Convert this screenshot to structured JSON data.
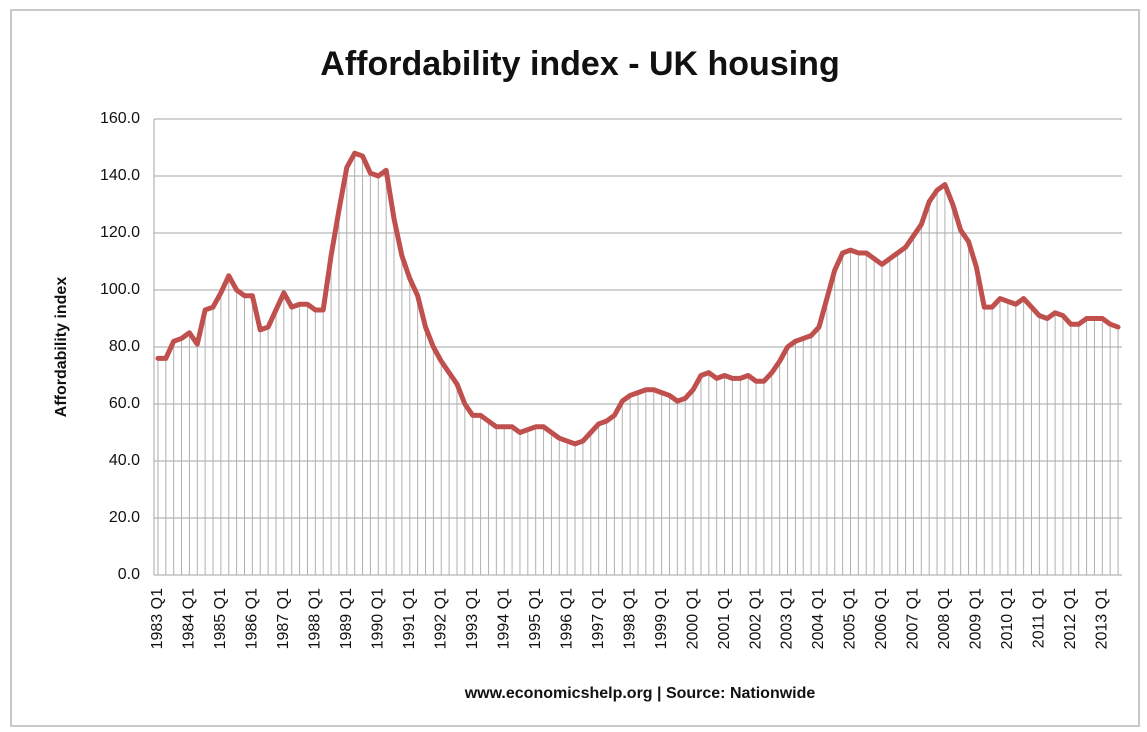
{
  "chart_data": {
    "type": "line",
    "title": "Affordability index - UK housing",
    "y_label": "Affordability index",
    "x_label": "www.economicshelp.org | Source: Nationwide",
    "color": "#c0504d",
    "grid": true,
    "drop_lines": true,
    "ylim": [
      0,
      160
    ],
    "yticks": [
      {
        "value": 0,
        "label": "0.0"
      },
      {
        "value": 20,
        "label": "20.0"
      },
      {
        "value": 40,
        "label": "40.0"
      },
      {
        "value": 60,
        "label": "60.0"
      },
      {
        "value": 80,
        "label": "80.0"
      },
      {
        "value": 100,
        "label": "100.0"
      },
      {
        "value": 120,
        "label": "120.0"
      },
      {
        "value": 140,
        "label": "140.0"
      },
      {
        "value": 160,
        "label": "160.0"
      }
    ],
    "categories": [
      "1983 Q1",
      null,
      null,
      null,
      "1984 Q1",
      null,
      null,
      null,
      "1985 Q1",
      null,
      null,
      null,
      "1986 Q1",
      null,
      null,
      null,
      "1987 Q1",
      null,
      null,
      null,
      "1988 Q1",
      null,
      null,
      null,
      "1989 Q1",
      null,
      null,
      null,
      "1990 Q1",
      null,
      null,
      null,
      "1991 Q1",
      null,
      null,
      null,
      "1992 Q1",
      null,
      null,
      null,
      "1993 Q1",
      null,
      null,
      null,
      "1994 Q1",
      null,
      null,
      null,
      "1995 Q1",
      null,
      null,
      null,
      "1996 Q1",
      null,
      null,
      null,
      "1997 Q1",
      null,
      null,
      null,
      "1998 Q1",
      null,
      null,
      null,
      "1999 Q1",
      null,
      null,
      null,
      "2000 Q1",
      null,
      null,
      null,
      "2001 Q1",
      null,
      null,
      null,
      "2002 Q1",
      null,
      null,
      null,
      "2003 Q1",
      null,
      null,
      null,
      "2004 Q1",
      null,
      null,
      null,
      "2005 Q1",
      null,
      null,
      null,
      "2006 Q1",
      null,
      null,
      null,
      "2007 Q1",
      null,
      null,
      null,
      "2008 Q1",
      null,
      null,
      null,
      "2009 Q1",
      null,
      null,
      null,
      "2010 Q1",
      null,
      null,
      null,
      "2011 Q1",
      null,
      null,
      null,
      "2012 Q1",
      null,
      null,
      null,
      "2013 Q1",
      null,
      null
    ],
    "values": [
      76,
      76,
      82,
      83,
      85,
      81,
      93,
      94,
      99,
      105,
      100,
      98,
      98,
      86,
      87,
      93,
      99,
      94,
      95,
      95,
      93,
      93,
      112,
      128,
      143,
      148,
      147,
      141,
      140,
      142,
      125,
      112,
      104,
      98,
      87,
      80,
      75,
      71,
      67,
      60,
      56,
      56,
      54,
      52,
      52,
      52,
      50,
      51,
      52,
      52,
      50,
      48,
      47,
      46,
      47,
      50,
      53,
      54,
      56,
      61,
      63,
      64,
      65,
      65,
      64,
      63,
      61,
      62,
      65,
      70,
      71,
      69,
      70,
      69,
      69,
      70,
      68,
      68,
      71,
      75,
      80,
      82,
      83,
      84,
      87,
      97,
      107,
      113,
      114,
      113,
      113,
      111,
      109,
      111,
      113,
      115,
      119,
      123,
      131,
      135,
      137,
      130,
      121,
      117,
      108,
      94,
      94,
      97,
      96,
      95,
      97,
      94,
      91,
      90,
      92,
      91,
      88,
      88,
      90,
      90,
      90,
      88,
      87
    ]
  }
}
